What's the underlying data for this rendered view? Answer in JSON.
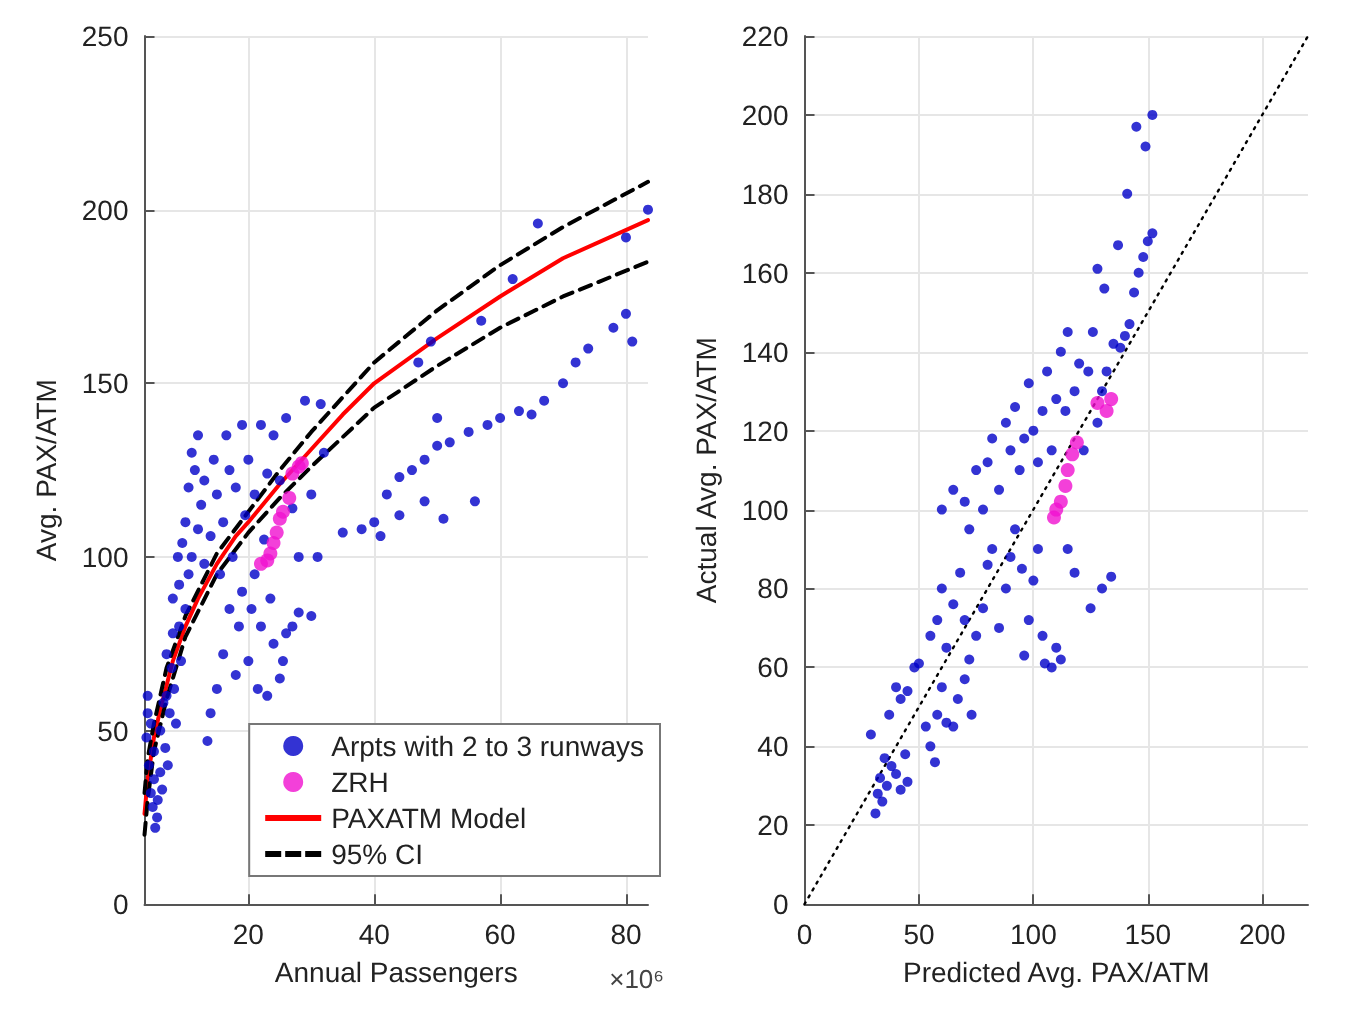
{
  "chart_data": [
    {
      "type": "scatter",
      "xlabel": "Annual Passengers",
      "ylabel": "Avg. PAX/ATM",
      "annotations": [
        "×10⁶"
      ],
      "xlim": [
        3.5,
        83.5
      ],
      "xticks": [
        20,
        40,
        60,
        80
      ],
      "ylim": [
        0,
        250
      ],
      "yticks": [
        0,
        50,
        100,
        150,
        200,
        250
      ],
      "grid": true,
      "legend": "bottom right",
      "series": [
        {
          "name": "Arpts with 2 to 3 runways",
          "color": "#0000c8",
          "marker": "circle",
          "x": [
            3.8,
            4,
            4.2,
            4.5,
            4.8,
            5,
            5.2,
            5.5,
            4,
            4.5,
            5,
            5.6,
            6,
            6,
            6.3,
            6.5,
            6.8,
            7,
            7,
            7.2,
            7.5,
            7.8,
            8,
            8,
            8.2,
            8.5,
            8.8,
            9,
            9,
            9.3,
            9.5,
            10,
            10,
            10.5,
            10.5,
            11,
            11,
            11.5,
            12,
            12,
            12.5,
            13,
            13,
            13.5,
            14,
            14,
            14.5,
            15,
            15,
            15.5,
            16,
            16,
            16.5,
            17,
            17,
            17.5,
            18,
            18,
            18.5,
            19,
            19,
            19.5,
            20,
            20,
            20.5,
            21,
            21,
            21.5,
            22,
            22,
            22.5,
            23,
            23,
            23.5,
            24,
            24,
            25,
            25,
            25.5,
            26,
            26,
            27,
            27,
            28,
            28,
            29,
            30,
            30,
            31,
            31.5,
            32,
            35,
            38,
            40,
            41,
            44,
            48,
            51,
            56,
            47,
            50,
            49,
            42,
            44,
            46,
            48,
            50,
            52,
            55,
            58,
            60,
            63,
            65,
            67,
            70,
            72,
            74,
            78,
            80,
            81,
            62,
            66,
            80,
            83.5,
            57
          ],
          "values": [
            48,
            55,
            40,
            32,
            28,
            36,
            22,
            25,
            60,
            52,
            44,
            30,
            38,
            50,
            33,
            58,
            45,
            60,
            72,
            40,
            55,
            68,
            78,
            88,
            62,
            52,
            100,
            80,
            92,
            70,
            104,
            85,
            110,
            95,
            120,
            100,
            130,
            125,
            108,
            135,
            115,
            98,
            122,
            47,
            106,
            55,
            128,
            118,
            62,
            95,
            110,
            72,
            135,
            85,
            125,
            100,
            66,
            120,
            80,
            138,
            90,
            112,
            70,
            128,
            85,
            95,
            118,
            62,
            80,
            138,
            105,
            60,
            124,
            88,
            75,
            135,
            65,
            122,
            70,
            78,
            140,
            80,
            114,
            100,
            84,
            145,
            83,
            118,
            100,
            144,
            130,
            107,
            108,
            110,
            106,
            112,
            116,
            111,
            116,
            156,
            140,
            162,
            118,
            123,
            125,
            128,
            132,
            133,
            136,
            138,
            140,
            142,
            141,
            145,
            150,
            156,
            160,
            166,
            170,
            162,
            180,
            196,
            192,
            200,
            168
          ]
        },
        {
          "name": "ZRH",
          "color": "#f010d0",
          "marker": "circle",
          "x": [
            22,
            23,
            23.5,
            24,
            24.5,
            25,
            25.5,
            26.5,
            27,
            28,
            28.5
          ],
          "values": [
            98,
            99,
            101,
            104,
            107,
            111,
            113,
            117,
            124,
            126,
            127
          ]
        },
        {
          "name": "PAXATM Model",
          "type": "line",
          "color": "#ff0000",
          "line_style": "solid",
          "x": [
            3.5,
            4,
            5,
            6,
            7,
            8,
            10,
            12,
            15,
            18,
            20,
            25,
            30,
            35,
            40,
            50,
            60,
            70,
            83.5
          ],
          "values": [
            26,
            36,
            48,
            56,
            63,
            70,
            80,
            88,
            98,
            106,
            110,
            121,
            131,
            141,
            150,
            163,
            175,
            186,
            197
          ]
        },
        {
          "name": "95% CI",
          "type": "line",
          "color": "#000000",
          "line_style": "dashed",
          "x": [
            3.5,
            4,
            5,
            7,
            10,
            15,
            20,
            25,
            30,
            40,
            50,
            60,
            70,
            83.5
          ],
          "values": [
            32,
            42,
            52,
            68,
            83,
            101,
            113,
            125,
            136,
            156,
            171,
            184,
            195,
            208
          ]
        },
        {
          "type": "line",
          "color": "#000000",
          "line_style": "dashed",
          "x": [
            3.5,
            4,
            5,
            7,
            10,
            15,
            20,
            25,
            30,
            40,
            50,
            60,
            70,
            83.5
          ],
          "values": [
            20,
            30,
            44,
            59,
            77,
            95,
            107,
            117,
            126,
            143,
            155,
            166,
            175,
            185
          ]
        }
      ]
    },
    {
      "type": "scatter",
      "xlabel": "Predicted Avg. PAX/ATM",
      "ylabel": "Actual Avg. PAX/ATM",
      "xlim": [
        0,
        220
      ],
      "xticks": [
        0,
        50,
        100,
        150,
        200
      ],
      "ylim": [
        0,
        220
      ],
      "yticks": [
        0,
        20,
        40,
        60,
        80,
        100,
        120,
        140,
        160,
        180,
        200,
        220
      ],
      "grid": true,
      "series": [
        {
          "color": "#0000c8",
          "marker": "circle",
          "x": [
            29,
            31,
            32,
            33,
            34,
            35,
            36,
            38,
            40,
            42,
            44,
            45,
            37,
            40,
            42,
            45,
            48,
            50,
            53,
            55,
            57,
            58,
            60,
            62,
            65,
            67,
            70,
            73,
            55,
            58,
            60,
            62,
            65,
            68,
            70,
            72,
            75,
            78,
            80,
            82,
            85,
            88,
            90,
            92,
            95,
            96,
            98,
            100,
            102,
            104,
            105,
            108,
            110,
            112,
            115,
            118,
            125,
            130,
            134,
            60,
            65,
            70,
            72,
            75,
            78,
            80,
            82,
            85,
            88,
            90,
            92,
            94,
            96,
            98,
            100,
            102,
            104,
            106,
            108,
            110,
            112,
            114,
            115,
            118,
            120,
            122,
            124,
            126,
            128,
            130,
            132,
            135,
            138,
            140,
            142,
            144,
            146,
            148,
            150,
            152,
            128,
            131,
            137,
            141,
            145,
            149,
            152
          ],
          "values": [
            43,
            23,
            28,
            32,
            26,
            37,
            30,
            35,
            33,
            29,
            38,
            31,
            48,
            55,
            52,
            54,
            60,
            61,
            45,
            40,
            36,
            48,
            55,
            46,
            45,
            52,
            57,
            48,
            68,
            72,
            80,
            65,
            76,
            84,
            72,
            62,
            68,
            75,
            86,
            90,
            70,
            80,
            88,
            95,
            85,
            63,
            72,
            82,
            90,
            68,
            61,
            60,
            65,
            62,
            90,
            84,
            75,
            80,
            83,
            100,
            105,
            102,
            95,
            110,
            100,
            112,
            118,
            105,
            122,
            115,
            126,
            110,
            118,
            132,
            120,
            112,
            125,
            135,
            115,
            128,
            140,
            125,
            145,
            130,
            137,
            115,
            135,
            145,
            122,
            130,
            135,
            142,
            141,
            144,
            147,
            155,
            160,
            164,
            168,
            170,
            161,
            156,
            167,
            180,
            197,
            192,
            200
          ]
        },
        {
          "color": "#f010d0",
          "marker": "circle",
          "x": [
            109,
            110,
            112,
            114,
            115,
            117,
            119,
            128,
            132,
            134
          ],
          "values": [
            98,
            100,
            102,
            106,
            110,
            114,
            117,
            127,
            125,
            128
          ]
        },
        {
          "type": "line",
          "color": "#000000",
          "line_style": "dotted",
          "x": [
            0,
            220
          ],
          "values": [
            0,
            220
          ]
        }
      ]
    }
  ]
}
